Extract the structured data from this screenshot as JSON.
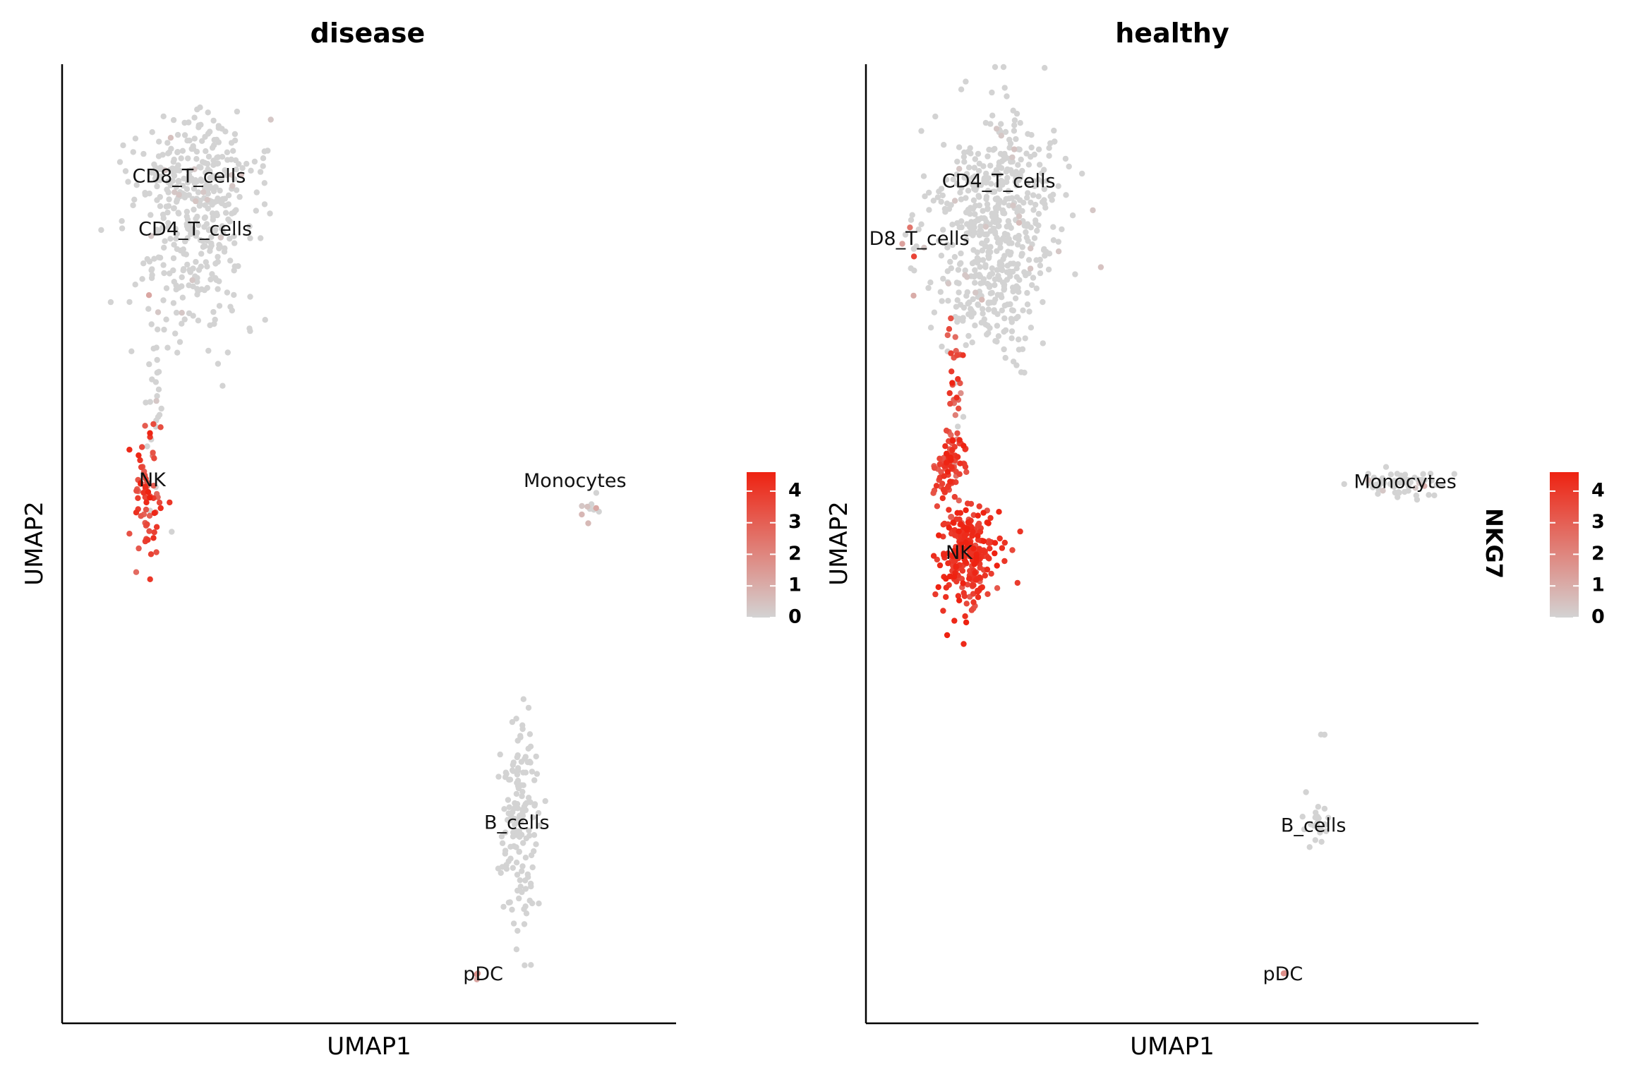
{
  "gene": "NKG7",
  "colors": {
    "low": "#d3d3d3",
    "high": "#ee2211",
    "axis": "#000000",
    "label": "#111111"
  },
  "chart_data": [
    {
      "type": "scatter",
      "title": "disease",
      "xlabel": "UMAP1",
      "ylabel": "UMAP2",
      "xlim": [
        0,
        100
      ],
      "ylim": [
        0,
        100
      ],
      "color_scale": {
        "label": "",
        "ticks": [
          0,
          1,
          2,
          3,
          4
        ],
        "range": [
          0,
          4.6
        ]
      },
      "clusters": [
        {
          "name": "CD8_T_cells",
          "label": "CD8_T_cells",
          "x": 20.5,
          "y": 88.5,
          "sx": 4.6,
          "sy": 3.2,
          "n": 160,
          "mean": 0.05,
          "sd": 0.3,
          "frac": 0.03,
          "seed": 11
        },
        {
          "name": "CD4_T_cells",
          "label": "CD4_T_cells",
          "x": 21.5,
          "y": 81.5,
          "sx": 4.8,
          "sy": 5.5,
          "n": 260,
          "mean": 0.05,
          "sd": 0.3,
          "frac": 0.03,
          "seed": 12
        },
        {
          "name": "Tcell_tail",
          "label": "",
          "x": 14.5,
          "y": 66,
          "sx": 0.8,
          "sy": 4.5,
          "n": 22,
          "mean": 0.1,
          "sd": 0.4,
          "frac": 0.06,
          "seed": 13
        },
        {
          "name": "NK",
          "label": "NK",
          "x": 14.0,
          "y": 55.5,
          "sx": 1.2,
          "sy": 3.8,
          "n": 70,
          "mean": 3.6,
          "sd": 0.6,
          "frac": 0.95,
          "seed": 14
        },
        {
          "name": "Monocytes",
          "label": "Monocytes",
          "x": 86.0,
          "y": 54.0,
          "sx": 1.0,
          "sy": 0.8,
          "n": 10,
          "mean": 0.3,
          "sd": 0.5,
          "frac": 0.25,
          "seed": 15
        },
        {
          "name": "B_cells",
          "label": "B_cells",
          "x": 74.5,
          "y": 20.5,
          "sx": 1.6,
          "sy": 5.8,
          "n": 150,
          "mean": 0.0,
          "sd": 0.1,
          "frac": 0.0,
          "seed": 16
        },
        {
          "name": "pDC",
          "label": "pDC",
          "x": 67.5,
          "y": 4.9,
          "sx": 0.4,
          "sy": 0.3,
          "n": 3,
          "mean": 1.5,
          "sd": 0.4,
          "frac": 1.0,
          "seed": 17
        }
      ],
      "labels": [
        {
          "text": "CD8_T_cells",
          "x": 20.5,
          "y": 88.2
        },
        {
          "text": "CD4_T_cells",
          "x": 21.5,
          "y": 82.7
        },
        {
          "text": "NK",
          "x": 14.5,
          "y": 56.5
        },
        {
          "text": "Monocytes",
          "x": 83.5,
          "y": 56.4
        },
        {
          "text": "B_cells",
          "x": 74.0,
          "y": 20.7
        },
        {
          "text": "pDC",
          "x": 68.5,
          "y": 4.9
        }
      ]
    },
    {
      "type": "scatter",
      "title": "healthy",
      "xlabel": "UMAP1",
      "ylabel": "UMAP2",
      "xlim": [
        0,
        100
      ],
      "ylim": [
        0,
        100
      ],
      "color_scale": {
        "label": "NKG7",
        "ticks": [
          0,
          1,
          2,
          3,
          4
        ],
        "range": [
          0,
          4.6
        ]
      },
      "clusters": [
        {
          "name": "CD4_T_cells",
          "label": "CD4_T_cells",
          "x": 21.5,
          "y": 85.0,
          "sx": 5.2,
          "sy": 5.0,
          "n": 420,
          "mean": 0.05,
          "sd": 0.3,
          "frac": 0.03,
          "seed": 21
        },
        {
          "name": "Tcell_lower",
          "label": "",
          "x": 20.5,
          "y": 75.5,
          "sx": 4.0,
          "sy": 3.0,
          "n": 150,
          "mean": 0.1,
          "sd": 0.4,
          "frac": 0.05,
          "seed": 22
        },
        {
          "name": "CD8_T_cells",
          "label": "D8_T_cells",
          "x": 7.5,
          "y": 81.5,
          "sx": 0.9,
          "sy": 2.0,
          "n": 14,
          "mean": 1.5,
          "sd": 1.0,
          "frac": 0.55,
          "seed": 23
        },
        {
          "name": "NK_stream",
          "label": "",
          "x": 14.0,
          "y": 63.0,
          "sx": 0.8,
          "sy": 5.0,
          "n": 50,
          "mean": 3.3,
          "sd": 0.7,
          "frac": 0.9,
          "seed": 24
        },
        {
          "name": "NK_upper",
          "label": "",
          "x": 13.5,
          "y": 58.0,
          "sx": 1.4,
          "sy": 1.5,
          "n": 70,
          "mean": 3.8,
          "sd": 0.5,
          "frac": 1.0,
          "seed": 25
        },
        {
          "name": "NK",
          "label": "NK",
          "x": 16.5,
          "y": 48.5,
          "sx": 2.4,
          "sy": 2.6,
          "n": 260,
          "mean": 4.1,
          "sd": 0.4,
          "frac": 1.0,
          "seed": 26
        },
        {
          "name": "Monocytes",
          "label": "Monocytes",
          "x": 87.5,
          "y": 56.3,
          "sx": 3.5,
          "sy": 0.7,
          "n": 60,
          "mean": 0.1,
          "sd": 0.4,
          "frac": 0.12,
          "seed": 27
        },
        {
          "name": "B_cells",
          "label": "B_cells",
          "x": 73.5,
          "y": 20.5,
          "sx": 1.2,
          "sy": 1.6,
          "n": 24,
          "mean": 0.0,
          "sd": 0.1,
          "frac": 0.0,
          "seed": 28
        },
        {
          "name": "B_top",
          "label": "",
          "x": 74.5,
          "y": 30.0,
          "sx": 0.3,
          "sy": 0.4,
          "n": 3,
          "mean": 0.0,
          "sd": 0.1,
          "frac": 0.0,
          "seed": 29
        },
        {
          "name": "pDC",
          "label": "pDC",
          "x": 68.0,
          "y": 4.9,
          "sx": 0.3,
          "sy": 0.3,
          "n": 2,
          "mean": 1.5,
          "sd": 0.3,
          "frac": 0.5,
          "seed": 30
        }
      ],
      "labels": [
        {
          "text": "CD4_T_cells",
          "x": 21.5,
          "y": 87.7
        },
        {
          "text": "D8_T_cells",
          "x": 8.5,
          "y": 81.7
        },
        {
          "text": "NK",
          "x": 15.0,
          "y": 48.9
        },
        {
          "text": "Monocytes",
          "x": 88.0,
          "y": 56.3
        },
        {
          "text": "B_cells",
          "x": 73.0,
          "y": 20.4
        },
        {
          "text": "pDC",
          "x": 68.0,
          "y": 4.9
        }
      ]
    }
  ]
}
